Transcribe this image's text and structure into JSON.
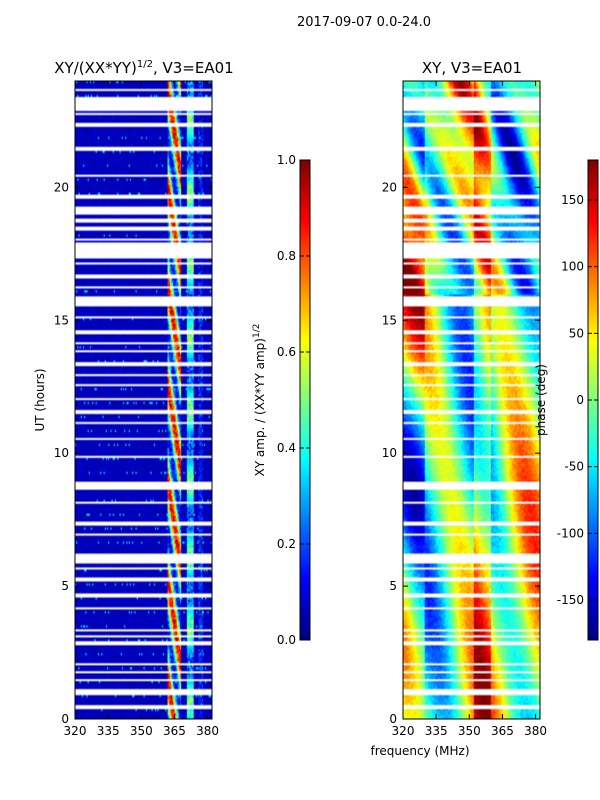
{
  "chart_data": [
    {
      "type": "heatmap",
      "suptitle": "2017-09-07 0.0-24.0",
      "title": "XY/(XX*YY)",
      "title_superscript": "1/2",
      "title_suffix": ", V3=EA01",
      "xlabel": "frequency (MHz)",
      "ylabel": "UT (hours)",
      "xlim": [
        320,
        382
      ],
      "ylim": [
        0,
        24
      ],
      "xticks": [
        "320",
        "335",
        "350",
        "365",
        "380"
      ],
      "yticks": [
        "0",
        "5",
        "10",
        "15",
        "20"
      ],
      "colorbar": {
        "label": "XY amp. / (XX*YY amp)",
        "label_superscript": "1/2",
        "range": [
          0.0,
          1.0
        ],
        "ticks": [
          "0.0",
          "0.2",
          "0.4",
          "0.6",
          "0.8",
          "1.0"
        ],
        "colormap": "jet"
      },
      "notes": "Mostly low (~0.05) values; strong RFI-like high values in band 362-368 MHz; a weaker channel near 372 MHz; horizontal white gaps are flagged time intervals."
    },
    {
      "type": "heatmap",
      "title": "XY, V3=EA01",
      "xlabel": "frequency (MHz)",
      "xlim": [
        320,
        382
      ],
      "ylim": [
        0,
        24
      ],
      "xticks": [
        "320",
        "335",
        "350",
        "365",
        "380"
      ],
      "yticks": [
        "0",
        "5",
        "10",
        "15",
        "20"
      ],
      "colorbar": {
        "label": "phase (deg)",
        "range": [
          -180,
          180
        ],
        "ticks": [
          "-150",
          "-100",
          "-50",
          "0",
          "50",
          "100",
          "150"
        ],
        "colormap": "jet"
      },
      "notes": "Phase shows slow drifts in frequency and time; vertical bands near 325 and 355 MHz; horizontal white gaps match the flagged intervals of the amplitude panel."
    }
  ],
  "flag_gaps_hours": [
    [
      0.4,
      0.5
    ],
    [
      0.9,
      1.1
    ],
    [
      1.4,
      1.5
    ],
    [
      1.7,
      1.8
    ],
    [
      2.0,
      2.1
    ],
    [
      2.8,
      2.9
    ],
    [
      3.05,
      3.15
    ],
    [
      3.3,
      3.4
    ],
    [
      4.1,
      4.2
    ],
    [
      4.6,
      4.7
    ],
    [
      5.2,
      5.35
    ],
    [
      5.6,
      5.7
    ],
    [
      5.85,
      6.2
    ],
    [
      6.9,
      7.0
    ],
    [
      7.3,
      7.4
    ],
    [
      8.1,
      8.2
    ],
    [
      8.6,
      8.9
    ],
    [
      9.8,
      9.9
    ],
    [
      10.5,
      10.55
    ],
    [
      11.1,
      11.2
    ],
    [
      11.5,
      11.6
    ],
    [
      12.0,
      12.1
    ],
    [
      12.5,
      12.6
    ],
    [
      12.9,
      13.0
    ],
    [
      13.3,
      13.4
    ],
    [
      13.8,
      13.9
    ],
    [
      14.1,
      14.2
    ],
    [
      14.5,
      14.6
    ],
    [
      15.05,
      15.15
    ],
    [
      15.5,
      15.9
    ],
    [
      16.2,
      16.3
    ],
    [
      16.6,
      16.7
    ],
    [
      17.1,
      17.2
    ],
    [
      17.3,
      17.9
    ],
    [
      18.0,
      18.1
    ],
    [
      18.4,
      18.5
    ],
    [
      18.7,
      18.8
    ],
    [
      19.0,
      19.3
    ],
    [
      19.6,
      19.7
    ],
    [
      20.4,
      20.5
    ],
    [
      21.4,
      21.5
    ],
    [
      22.3,
      22.4
    ],
    [
      22.7,
      22.8
    ],
    [
      22.9,
      23.4
    ],
    [
      23.6,
      23.7
    ]
  ]
}
